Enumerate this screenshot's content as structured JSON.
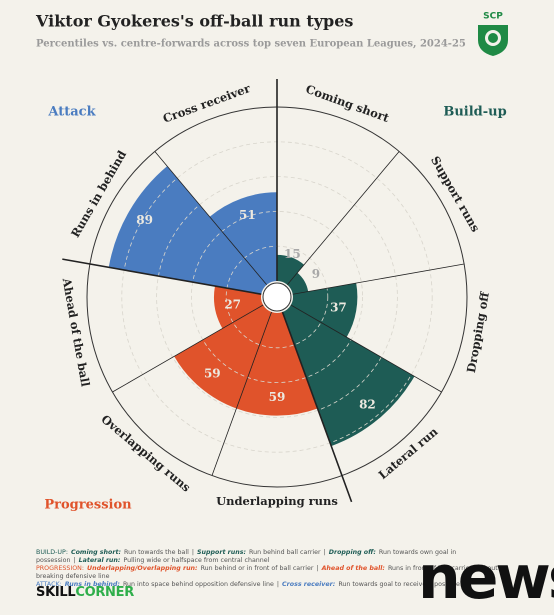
{
  "chart_data": {
    "type": "polar_bar",
    "title": "Viktor Gyokeres's off-ball run types",
    "subtitle": "Percentiles vs. centre-forwards across top seven European Leagues, 2024-25",
    "categories": [
      "Coming short",
      "Support runs",
      "Dropping off",
      "Lateral run",
      "Underlapping runs",
      "Overlapping runs",
      "Ahead of the ball",
      "Runs in behind",
      "Cross receiver"
    ],
    "values": [
      15,
      9,
      37,
      82,
      59,
      59,
      27,
      89,
      51
    ],
    "colors": [
      "#1e5c55",
      "#1e5c55",
      "#1e5c55",
      "#1e5c55",
      "#e0532b",
      "#e0532b",
      "#e0532b",
      "#4a7cc0",
      "#4a7cc0"
    ],
    "groups": [
      {
        "name": "Build-up",
        "color": "#1e5c55"
      },
      {
        "name": "Progression",
        "color": "#e0532b"
      },
      {
        "name": "Attack",
        "color": "#4a7cc0"
      }
    ],
    "ylim": [
      0,
      100
    ],
    "yticks": [
      20,
      40,
      60,
      80,
      100
    ],
    "grid": true
  },
  "logo": {
    "text": "SCP"
  },
  "footer": {
    "separator": "|",
    "sections": [
      {
        "label": "BUILD-UP:",
        "items": [
          {
            "term": "Coming short:",
            "desc": "Run towards the ball"
          },
          {
            "term": "Support runs:",
            "desc": "Run behind ball carrier"
          },
          {
            "term": "Dropping off:",
            "desc": "Run towards own goal in possession"
          },
          {
            "term": "Lateral run:",
            "desc": "Pulling wide or halfspace from central channel"
          }
        ]
      },
      {
        "label": "PROGRESSION:",
        "items": [
          {
            "term": "Underlapping/Overlapping run:",
            "desc": "Run behind or in front of ball carrier"
          },
          {
            "term": "Ahead of the ball:",
            "desc": "Runs in front of ball carrier without breaking defensive line"
          }
        ]
      },
      {
        "label": "ATTACK:",
        "items": [
          {
            "term": "Runs in behind:",
            "desc": "Run into space behind opposition defensive line"
          },
          {
            "term": "Cross receiver:",
            "desc": "Run towards goal to receive a possible"
          }
        ]
      }
    ],
    "brand": {
      "first": "SKILL",
      "second": "CORNER"
    }
  },
  "watermark": "news"
}
